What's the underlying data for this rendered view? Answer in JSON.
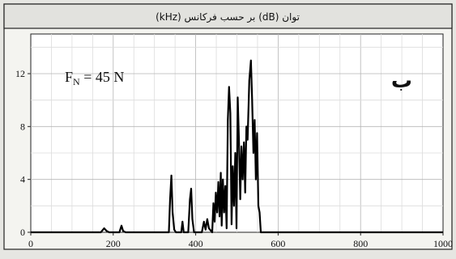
{
  "chart_data": {
    "type": "line",
    "title": "توان (dB) بر حسب فرکانس (kHz)",
    "panel_label": "ب",
    "annotation_main": "F",
    "annotation_sub": "N",
    "annotation_rest": " = 45 N",
    "xlim": [
      0,
      1000
    ],
    "ylim": [
      0,
      15
    ],
    "xticks": [
      0,
      200,
      400,
      600,
      800,
      1000
    ],
    "yticks": [
      0,
      4,
      8,
      12
    ],
    "grid": true,
    "series": [
      {
        "color": "#000000",
        "x": [
          0,
          170,
          178,
          184,
          190,
          215,
          220,
          224,
          230,
          335,
          338,
          341,
          344,
          348,
          352,
          365,
          368,
          371,
          374,
          382,
          386,
          389,
          392,
          396,
          400,
          415,
          420,
          424,
          428,
          432,
          440,
          443,
          446,
          449,
          452,
          455,
          458,
          461,
          463,
          466,
          469,
          472,
          475,
          478,
          481,
          484,
          487,
          490,
          493,
          496,
          499,
          502,
          505,
          508,
          511,
          514,
          517,
          520,
          523,
          526,
          530,
          534,
          537,
          540,
          543,
          546,
          549,
          552,
          555,
          558,
          561,
          565,
          1000
        ],
        "y": [
          0,
          0,
          0.3,
          0.1,
          0,
          0,
          0.5,
          0.1,
          0,
          0,
          2.5,
          4.3,
          1.5,
          0.2,
          0,
          0,
          0.8,
          0,
          0,
          0,
          2.5,
          3.3,
          1.0,
          0,
          0,
          0,
          0.8,
          0.2,
          1.0,
          0.3,
          0,
          2.2,
          0.8,
          3.0,
          1.5,
          3.8,
          1.2,
          4.5,
          0.5,
          4.0,
          1.5,
          3.5,
          0.3,
          8.5,
          11.0,
          9.0,
          0.6,
          5.0,
          2.0,
          6.0,
          0.3,
          10.2,
          7.0,
          2.5,
          6.5,
          4.0,
          6.8,
          3.0,
          8.0,
          7.0,
          11.5,
          13.0,
          10.0,
          6.0,
          8.5,
          4.0,
          7.5,
          2.0,
          1.5,
          0,
          0,
          0,
          0
        ]
      }
    ]
  }
}
